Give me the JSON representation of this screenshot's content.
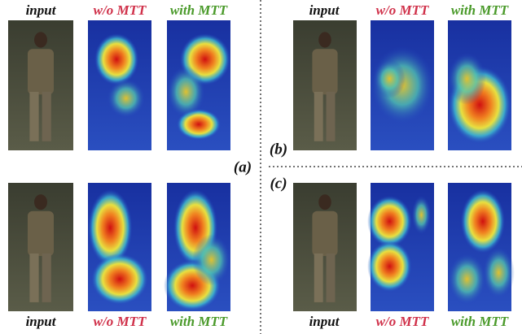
{
  "figure": {
    "panels": [
      {
        "label": "(a)",
        "top_headers": [
          "input",
          "w/o MTT",
          "with MTT"
        ],
        "bottom_headers": [
          "input",
          "w/o MTT",
          "with MTT"
        ]
      },
      {
        "label": "(b)",
        "headers": [
          "input",
          "w/o MTT",
          "with MTT"
        ]
      },
      {
        "label": "(c)",
        "headers": [
          "input",
          "w/o MTT",
          "with MTT"
        ]
      }
    ]
  }
}
